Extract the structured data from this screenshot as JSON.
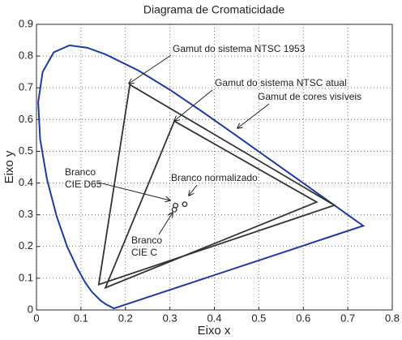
{
  "chart_data": {
    "type": "line",
    "title": "Diagrama de Cromaticidade",
    "xlabel": "Eixo x",
    "ylabel": "Eixo y",
    "xlim": [
      0,
      0.8
    ],
    "ylim": [
      0,
      0.9
    ],
    "xticks": [
      0,
      0.1,
      0.2,
      0.3,
      0.4,
      0.5,
      0.6,
      0.7,
      0.8
    ],
    "yticks": [
      0,
      0.1,
      0.2,
      0.3,
      0.4,
      0.5,
      0.6,
      0.7,
      0.8,
      0.9
    ],
    "grid": true,
    "series": [
      {
        "color": "#1f3a9e",
        "x": [
          0.1741,
          0.1566,
          0.144,
          0.1241,
          0.1096,
          0.0913,
          0.0687,
          0.0454,
          0.0235,
          0.0082,
          0.0039,
          0.0139,
          0.0389,
          0.0743,
          0.1142,
          0.1547,
          0.2296,
          0.3016,
          0.3731,
          0.4441,
          0.5125,
          0.5752,
          0.627,
          0.6915,
          0.719,
          0.7347
        ],
        "y": [
          0.005,
          0.0177,
          0.0297,
          0.0578,
          0.0868,
          0.1327,
          0.2007,
          0.295,
          0.4127,
          0.5384,
          0.6548,
          0.7502,
          0.812,
          0.8338,
          0.8262,
          0.8059,
          0.7543,
          0.6923,
          0.6245,
          0.5547,
          0.4866,
          0.4242,
          0.3725,
          0.3083,
          0.2809,
          0.2653
        ]
      },
      {
        "color": "#333333",
        "x": [
          0.67,
          0.21,
          0.14
        ],
        "y": [
          0.33,
          0.71,
          0.08
        ]
      },
      {
        "color": "#333333",
        "x": [
          0.63,
          0.31,
          0.155
        ],
        "y": [
          0.34,
          0.595,
          0.07
        ]
      }
    ],
    "points": {
      "color": "#333333",
      "x": [
        0.3127,
        0.3101,
        0.3333
      ],
      "y": [
        0.329,
        0.3162,
        0.3333
      ]
    },
    "annotations": [
      [
        "Gamut do sistema NTSC 1953"
      ],
      [
        "Gamut do sistema NTSC atual"
      ],
      [
        "Gamut de cores visíveis"
      ],
      [
        "Branco",
        "CIE D65"
      ],
      [
        "Branco normalizado"
      ],
      [
        "Branco",
        "CIE C"
      ]
    ]
  }
}
